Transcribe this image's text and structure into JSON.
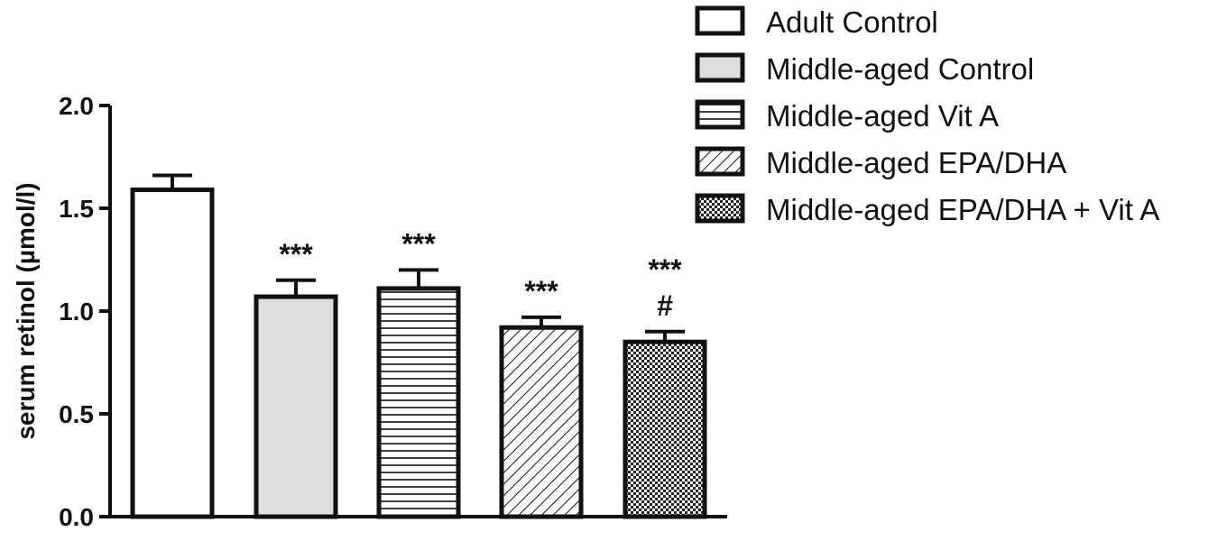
{
  "chart_data": {
    "type": "bar",
    "title": "",
    "xlabel": "",
    "ylabel": "serum retinol (µmol/l)",
    "ylim": [
      0,
      2.0
    ],
    "yticks": [
      0.0,
      0.5,
      1.0,
      1.5,
      2.0
    ],
    "ytick_labels": [
      "0.0",
      "0.5",
      "1.0",
      "1.5",
      "2.0"
    ],
    "grid": false,
    "legend_position": "top-right",
    "series": [
      {
        "name": "Adult Control",
        "value": 1.59,
        "error": 0.07,
        "pattern": "none",
        "fill": "#ffffff",
        "annotation": []
      },
      {
        "name": "Middle-aged Control",
        "value": 1.07,
        "error": 0.08,
        "pattern": "none",
        "fill": "#dddddd",
        "annotation": [
          "***"
        ]
      },
      {
        "name": "Middle-aged Vit A",
        "value": 1.11,
        "error": 0.09,
        "pattern": "horizontal",
        "fill": "#ffffff",
        "annotation": [
          "***"
        ]
      },
      {
        "name": "Middle-aged EPA/DHA",
        "value": 0.92,
        "error": 0.05,
        "pattern": "diagonal",
        "fill": "#ffffff",
        "annotation": [
          "***"
        ]
      },
      {
        "name": "Middle-aged EPA/DHA + Vit A",
        "value": 0.85,
        "error": 0.05,
        "pattern": "checker",
        "fill": "#ffffff",
        "annotation": [
          "***",
          "#"
        ]
      }
    ]
  },
  "colors": {
    "stroke": "#111111",
    "grey_fill": "#dddddd",
    "background": "#ffffff"
  }
}
